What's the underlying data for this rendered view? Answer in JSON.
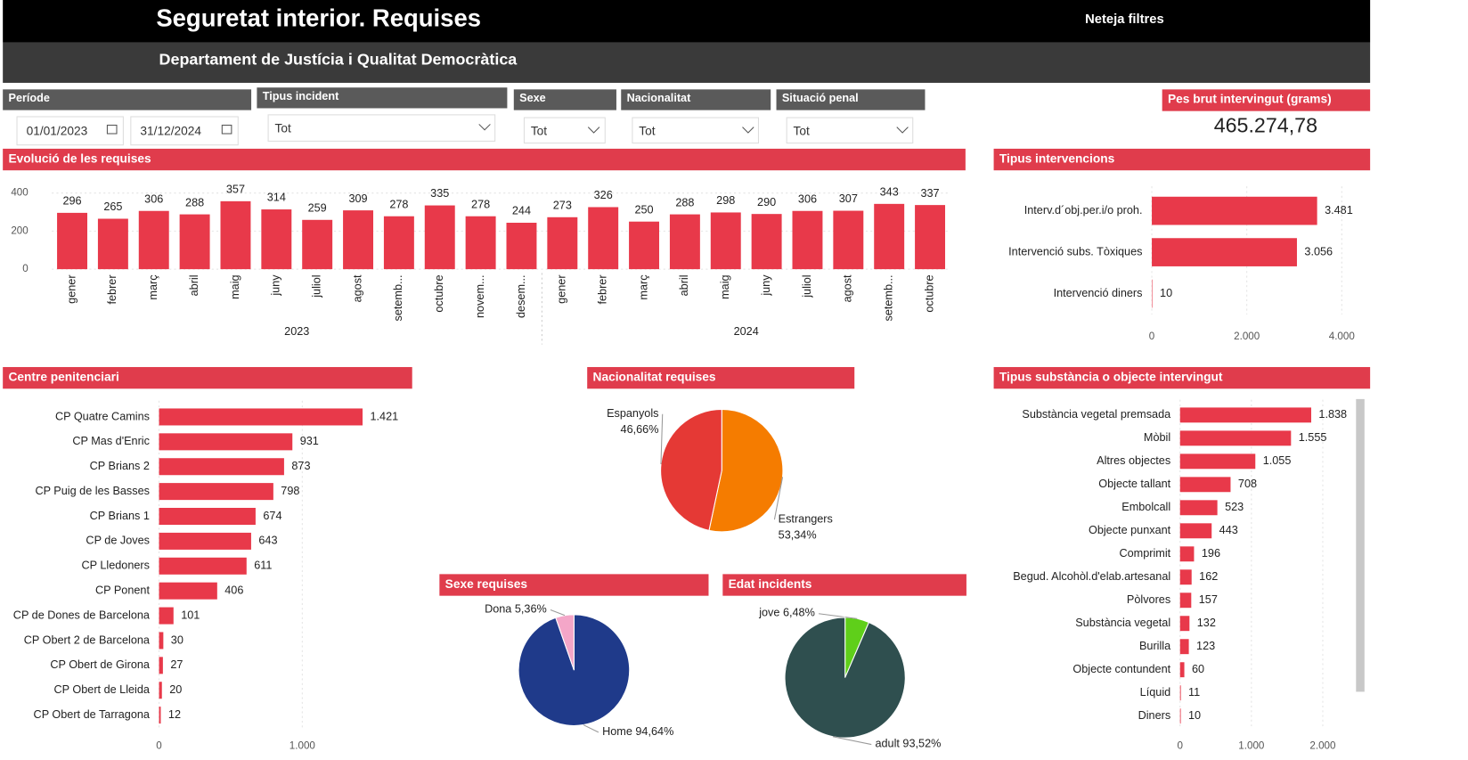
{
  "header": {
    "title": "Seguretat interior. Requises",
    "subtitle": "Departament de Justícia i Qualitat Democràtica",
    "clear_filters": "Neteja filtres"
  },
  "filters": [
    {
      "label": "Període",
      "values": [
        "01/01/2023",
        "31/12/2024"
      ]
    },
    {
      "label": "Tipus incident",
      "value": "Tot"
    },
    {
      "label": "Sexe",
      "value": "Tot"
    },
    {
      "label": "Nacionalitat",
      "value": "Tot"
    },
    {
      "label": "Situació penal",
      "value": "Tot"
    }
  ],
  "kpi": {
    "title": "Pes brut intervingut (grams)",
    "value": "465.274,78"
  },
  "chart_data": [
    {
      "type": "bar",
      "title": "Evolució de les requises",
      "categories": [
        "gener",
        "febrer",
        "març",
        "abril",
        "maig",
        "juny",
        "juliol",
        "agost",
        "setemb...",
        "octubre",
        "novem...",
        "desem...",
        "gener",
        "febrer",
        "març",
        "abril",
        "maig",
        "juny",
        "juliol",
        "agost",
        "setemb...",
        "octubre"
      ],
      "category_groups": [
        {
          "label": "2023",
          "size": 12
        },
        {
          "label": "2024",
          "size": 10
        }
      ],
      "values": [
        296,
        265,
        306,
        288,
        357,
        314,
        259,
        309,
        278,
        335,
        278,
        244,
        273,
        326,
        250,
        288,
        298,
        290,
        306,
        307,
        343,
        337
      ],
      "color": "#e8394a",
      "ylim": [
        0,
        450
      ],
      "yticks": [
        0,
        200,
        400
      ],
      "grid": true
    },
    {
      "type": "hbar",
      "title": "Tipus intervencions",
      "categories": [
        "Interv.d´obj.per.i/o proh.",
        "Intervenció subs. Tòxiques",
        "Intervenció diners"
      ],
      "values": [
        3481,
        3056,
        10
      ],
      "value_labels": [
        "3.481",
        "3.056",
        "10"
      ],
      "color": "#e8394a",
      "xlim": [
        0,
        4300
      ],
      "xticks": [
        0,
        {
          "value": 2000,
          "label": "2.000"
        },
        {
          "value": 4000,
          "label": "4.000"
        }
      ],
      "grid": true
    },
    {
      "type": "hbar",
      "title": "Centre penitenciari",
      "categories": [
        "CP Quatre Camins",
        "CP Mas d'Enric",
        "CP Brians 2",
        "CP Puig de les Basses",
        "CP Brians 1",
        "CP de Joves",
        "CP Lledoners",
        "CP Ponent",
        "CP de Dones de Barcelona",
        "CP Obert 2 de Barcelona",
        "CP Obert de Girona",
        "CP Obert de Lleida",
        "CP Obert de Tarragona"
      ],
      "values": [
        1421,
        931,
        873,
        798,
        674,
        643,
        611,
        406,
        101,
        30,
        27,
        20,
        12
      ],
      "value_labels": [
        "1.421",
        "931",
        "873",
        "798",
        "674",
        "643",
        "611",
        "406",
        "101",
        "30",
        "27",
        "20",
        "12"
      ],
      "color": "#e8394a",
      "xlim": [
        0,
        1800
      ],
      "xticks": [
        0,
        {
          "value": 1000,
          "label": "1.000"
        }
      ],
      "grid": true
    },
    {
      "type": "pie",
      "title": "Nacionalitat requises",
      "categories": [
        "Estrangers",
        "Espanyols"
      ],
      "values": [
        53.34,
        46.66
      ],
      "value_labels": [
        "53,34%",
        "46,66%"
      ],
      "colors": [
        "#f57c00",
        "#e53935"
      ]
    },
    {
      "type": "hbar",
      "title": "Tipus substància o objecte intervingut",
      "categories": [
        "Substància vegetal premsada",
        "Mòbil",
        "Altres objectes",
        "Objecte tallant",
        "Embolcall",
        "Objecte punxant",
        "Comprimit",
        "Begud. Alcohòl.d'elab.artesanal",
        "Pòlvores",
        "Substància vegetal",
        "Burilla",
        "Objecte contundent",
        "Líquid",
        "Diners"
      ],
      "values": [
        1838,
        1555,
        1055,
        708,
        523,
        443,
        196,
        162,
        157,
        132,
        123,
        60,
        11,
        10
      ],
      "value_labels": [
        "1.838",
        "1.555",
        "1.055",
        "708",
        "523",
        "443",
        "196",
        "162",
        "157",
        "132",
        "123",
        "60",
        "11",
        "10"
      ],
      "color": "#e8394a",
      "xlim": [
        0,
        2400
      ],
      "xticks": [
        0,
        {
          "value": 1000,
          "label": "1.000"
        },
        {
          "value": 2000,
          "label": "2.000"
        }
      ],
      "grid": true
    },
    {
      "type": "pie",
      "title": "Sexe requises",
      "categories": [
        "Home",
        "Dona"
      ],
      "values": [
        94.64,
        5.36
      ],
      "value_labels": [
        "94,64%",
        "5,36%"
      ],
      "colors": [
        "#1f3a8a",
        "#f4a6c8"
      ]
    },
    {
      "type": "pie",
      "title": "Edat incidents",
      "categories": [
        "jove",
        "adult"
      ],
      "values": [
        6.48,
        93.52
      ],
      "value_labels": [
        "6,48%",
        "93,52%"
      ],
      "colors": [
        "#5fcf1a",
        "#2f4f4f"
      ]
    }
  ]
}
